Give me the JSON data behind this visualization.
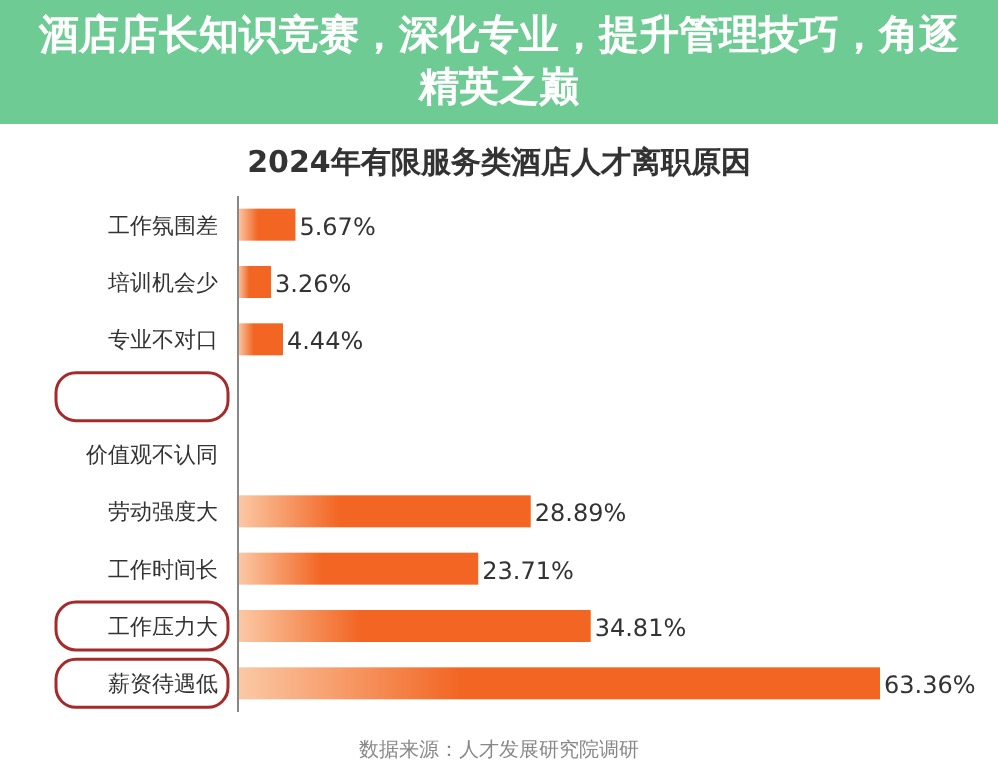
{
  "chart_data": {
    "type": "bar",
    "orientation": "horizontal",
    "title": "2024年有限服务类酒店人才离职原因",
    "subtitle": "酒店店长知识竞赛，深化专业，提升管理技巧，角逐精英之巅",
    "categories": [
      "工作氛围差",
      "培训机会少",
      "专业不对口",
      null,
      "价值观不认同",
      "劳动强度大",
      "工作时间长",
      "工作压力大",
      "薪资待遇低"
    ],
    "values": [
      5.67,
      3.26,
      4.44,
      null,
      null,
      28.89,
      23.71,
      34.81,
      63.36
    ],
    "value_labels": [
      "5.67%",
      "3.26%",
      "4.44%",
      null,
      null,
      "28.89%",
      "23.71%",
      "34.81%",
      "63.36%"
    ],
    "color": "#f26522",
    "annotations": [
      "数据来源：人才发展研究院调研"
    ]
  }
}
